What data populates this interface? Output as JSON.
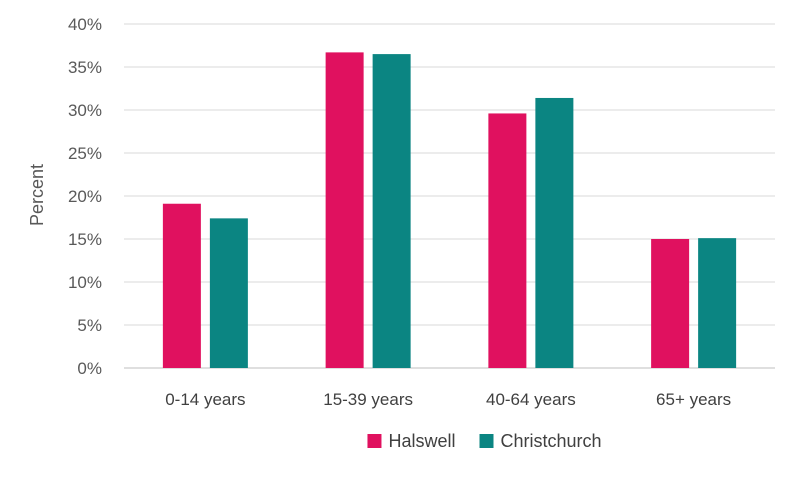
{
  "chart_data": {
    "type": "bar",
    "categories": [
      "0-14 years",
      "15-39 years",
      "40-64 years",
      "65+ years"
    ],
    "series": [
      {
        "name": "Halswell",
        "color": "#e0115f",
        "values": [
          19.1,
          36.7,
          29.6,
          15.0
        ]
      },
      {
        "name": "Christchurch",
        "color": "#0b8582",
        "values": [
          17.4,
          36.5,
          31.4,
          15.1
        ]
      }
    ],
    "title": "",
    "xlabel": "",
    "ylabel": "Percent",
    "ylim": [
      0,
      40
    ],
    "yticks": [
      0,
      5,
      10,
      15,
      20,
      25,
      30,
      35,
      40
    ],
    "ytick_labels": [
      "0%",
      "5%",
      "10%",
      "15%",
      "20%",
      "25%",
      "30%",
      "35%",
      "40%"
    ],
    "grid": true,
    "legend_position": "bottom-center"
  }
}
